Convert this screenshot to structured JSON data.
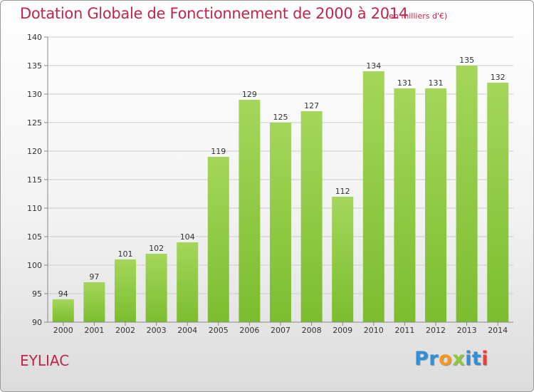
{
  "chart_data": {
    "type": "bar",
    "title": "Dotation Globale de Fonctionnement de 2000 à 2014",
    "subtitle": "(en milliers d'€)",
    "categories": [
      "2000",
      "2001",
      "2002",
      "2003",
      "2004",
      "2005",
      "2006",
      "2007",
      "2008",
      "2009",
      "2010",
      "2011",
      "2012",
      "2013",
      "2014"
    ],
    "values": [
      94,
      97,
      101,
      102,
      104,
      119,
      129,
      125,
      127,
      112,
      134,
      131,
      131,
      135,
      132
    ],
    "ylim": [
      90,
      140
    ],
    "yticks": [
      90,
      95,
      100,
      105,
      110,
      115,
      120,
      125,
      130,
      135,
      140
    ],
    "grid": true,
    "bar_color": "#7cbd2f",
    "bar_color_light": "#a4d65a"
  },
  "footer": {
    "location": "EYLIAC",
    "logo_letters": [
      {
        "char": "P",
        "color": "#2f8fd8"
      },
      {
        "char": "r",
        "color": "#2f8fd8"
      },
      {
        "char": "o",
        "color": "#f39a1e"
      },
      {
        "char": "x",
        "color": "#8dc63f"
      },
      {
        "char": "i",
        "color": "#2f8fd8"
      },
      {
        "char": "t",
        "color": "#2f8fd8"
      },
      {
        "char": "i",
        "color": "#e8403a"
      }
    ]
  },
  "colors": {
    "title": "#c0254b",
    "grid": "#cccccc",
    "axis": "#888888"
  }
}
